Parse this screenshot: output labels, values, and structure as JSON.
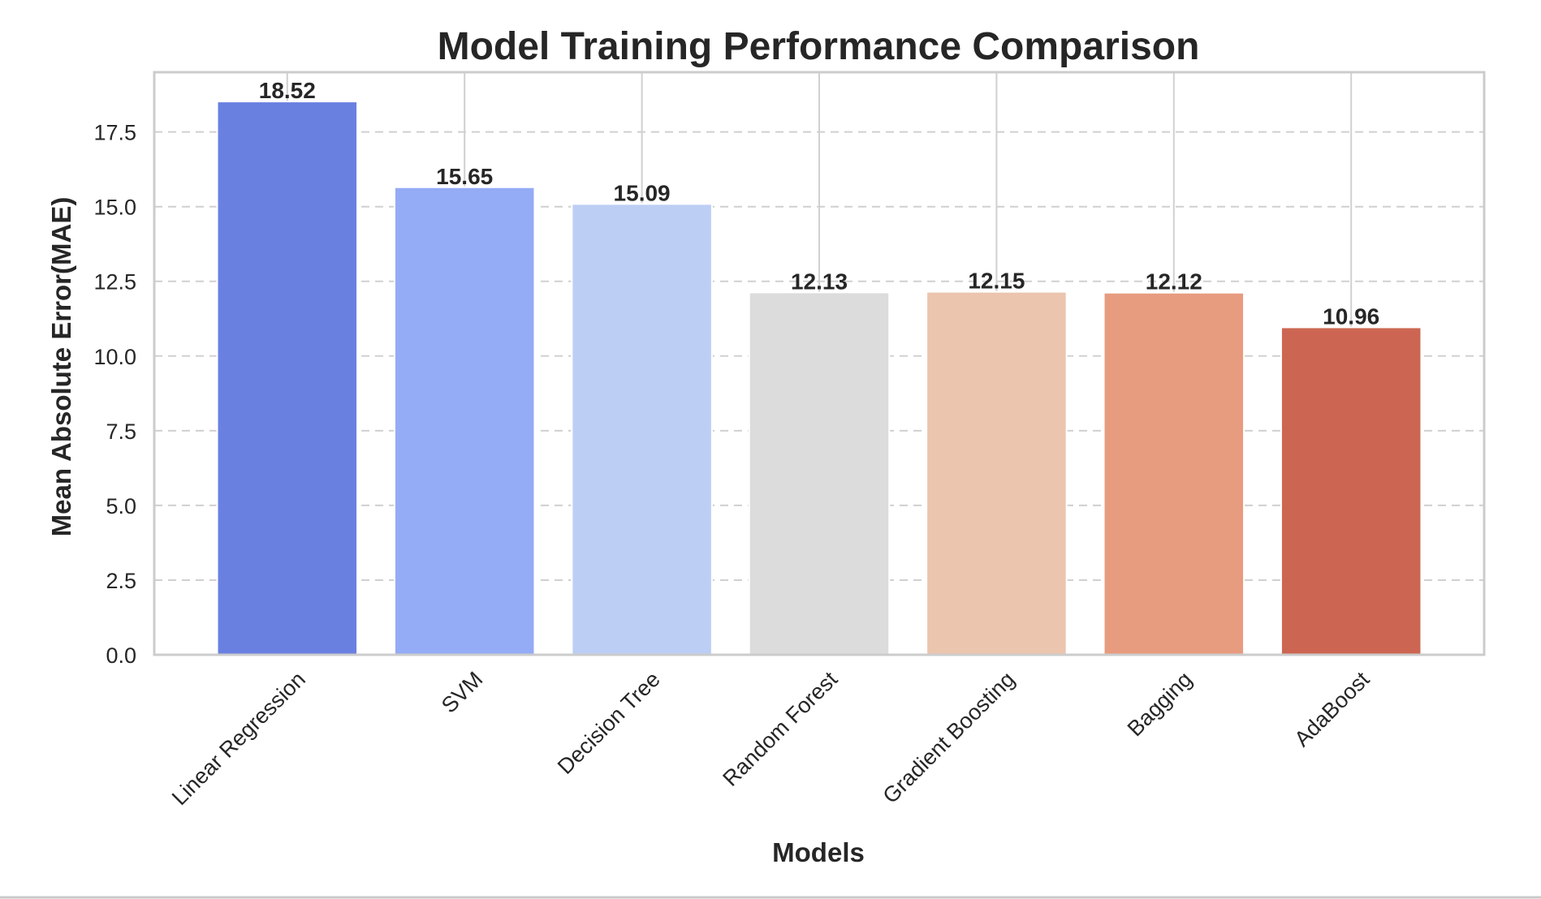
{
  "chart_data": {
    "type": "bar",
    "title": "Model Training Performance Comparison",
    "xlabel": "Models",
    "ylabel": "Mean Absolute Error(MAE)",
    "categories": [
      "Linear Regression",
      "SVM",
      "Decision Tree",
      "Random Forest",
      "Gradient Boosting",
      "Bagging",
      "AdaBoost"
    ],
    "values": [
      18.52,
      15.65,
      15.09,
      12.13,
      12.15,
      12.12,
      10.96
    ],
    "value_labels": [
      "18.52",
      "15.65",
      "15.09",
      "12.13",
      "12.15",
      "12.12",
      "10.96"
    ],
    "colors": [
      "#6a80e1",
      "#94abf5",
      "#bdcef4",
      "#dddcdc",
      "#ebc5ae",
      "#e79b7f",
      "#cc6652"
    ],
    "ylim": [
      0,
      19.5
    ],
    "yticks": [
      0.0,
      2.5,
      5.0,
      7.5,
      10.0,
      12.5,
      15.0,
      17.5
    ],
    "ytick_labels": [
      "0.0",
      "2.5",
      "5.0",
      "7.5",
      "10.0",
      "12.5",
      "15.0",
      "17.5"
    ],
    "grid": true,
    "legend": "none"
  }
}
